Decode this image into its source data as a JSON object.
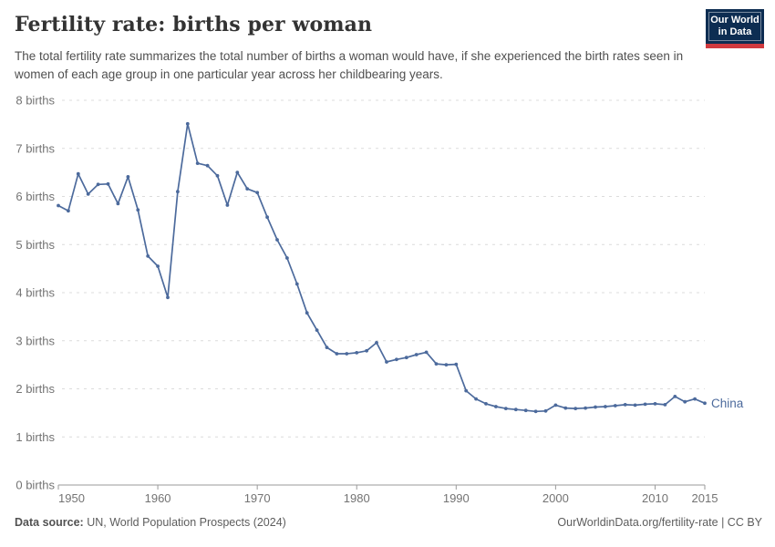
{
  "header": {
    "title": "Fertility rate: births per woman",
    "subtitle": "The total fertility rate summarizes the total number of births a woman would have, if she experienced the birth rates seen in women of each age group in one particular year across her childbearing years.",
    "logo": {
      "line1": "Our World",
      "line2": "in Data",
      "bg_color": "#0d2d52",
      "stripe_color": "#d03a3f"
    }
  },
  "chart_data": {
    "type": "line",
    "title": "Fertility rate: births per woman",
    "xlabel": "",
    "ylabel": "births",
    "xlim": [
      1950,
      2015
    ],
    "ylim": [
      0,
      8
    ],
    "grid": "horizontal-dashed",
    "legend_position": "end-of-line-label",
    "x_ticks": [
      1950,
      1960,
      1970,
      1980,
      1990,
      2000,
      2010,
      2015
    ],
    "y_ticks": [
      0,
      1,
      2,
      3,
      4,
      5,
      6,
      7,
      8
    ],
    "y_tick_suffix": " births",
    "tick_label_color": "#737373",
    "grid_color": "#dcdcdc",
    "axis_color": "#9a9a9a",
    "x": [
      1950,
      1951,
      1952,
      1953,
      1954,
      1955,
      1956,
      1957,
      1958,
      1959,
      1960,
      1961,
      1962,
      1963,
      1964,
      1965,
      1966,
      1967,
      1968,
      1969,
      1970,
      1971,
      1972,
      1973,
      1974,
      1975,
      1976,
      1977,
      1978,
      1979,
      1980,
      1981,
      1982,
      1983,
      1984,
      1985,
      1986,
      1987,
      1988,
      1989,
      1990,
      1991,
      1992,
      1993,
      1994,
      1995,
      1996,
      1997,
      1998,
      1999,
      2000,
      2001,
      2002,
      2003,
      2004,
      2005,
      2006,
      2007,
      2008,
      2009,
      2010,
      2011,
      2012,
      2013,
      2014,
      2015
    ],
    "series": [
      {
        "name": "China",
        "color": "#4c6a9c",
        "values": [
          5.81,
          5.7,
          6.47,
          6.05,
          6.25,
          6.26,
          5.85,
          6.41,
          5.72,
          4.76,
          4.55,
          3.9,
          6.1,
          7.51,
          6.69,
          6.64,
          6.43,
          5.82,
          6.5,
          6.16,
          6.08,
          5.57,
          5.1,
          4.72,
          4.18,
          3.58,
          3.22,
          2.86,
          2.73,
          2.73,
          2.75,
          2.79,
          2.96,
          2.56,
          2.61,
          2.65,
          2.71,
          2.76,
          2.52,
          2.5,
          2.51,
          1.96,
          1.79,
          1.69,
          1.63,
          1.59,
          1.57,
          1.55,
          1.53,
          1.54,
          1.66,
          1.6,
          1.59,
          1.6,
          1.62,
          1.63,
          1.65,
          1.67,
          1.66,
          1.68,
          1.69,
          1.67,
          1.84,
          1.73,
          1.79,
          1.7
        ]
      }
    ]
  },
  "footer": {
    "source_label": "Data source:",
    "source_value": " UN, World Population Prospects (2024)",
    "credit": "OurWorldinData.org/fertility-rate | CC BY"
  }
}
